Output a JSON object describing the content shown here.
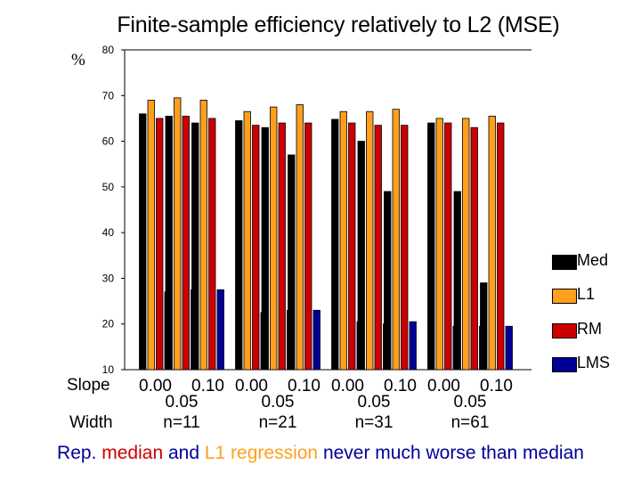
{
  "chart_data": {
    "type": "bar",
    "title": "Finite-sample efficiency relatively to L2   (MSE)",
    "ylabel": "%",
    "ylim": [
      10,
      80
    ],
    "yticks": [
      10,
      20,
      30,
      40,
      50,
      60,
      70,
      80
    ],
    "row_label_slope": "Slope",
    "row_label_width": "Width",
    "group_widths": [
      "n=11",
      "n=21",
      "n=31",
      "n=61"
    ],
    "slope_labels_top": [
      "0.00",
      "0.10",
      "0.00",
      "0.10",
      "0.00",
      "0.10",
      "0.00",
      "0.10"
    ],
    "slope_labels_mid": [
      "0.05",
      "0.05",
      "0.05",
      "0.05"
    ],
    "categories": [
      "n=11 slope 0.00",
      "n=11 slope 0.05",
      "n=11 slope 0.10",
      "n=21 slope 0.00",
      "n=21 slope 0.05",
      "n=21 slope 0.10",
      "n=31 slope 0.00",
      "n=31 slope 0.05",
      "n=31 slope 0.10",
      "n=61 slope 0.00",
      "n=61 slope 0.05",
      "n=61 slope 0.10"
    ],
    "series": [
      {
        "name": "Med",
        "color": "#000000",
        "values": [
          66,
          65.5,
          64,
          64.5,
          63,
          57,
          64.8,
          60,
          49,
          64,
          49,
          29
        ]
      },
      {
        "name": "L1",
        "color": "#ff9f1c",
        "values": [
          69,
          69.5,
          69,
          66.5,
          67.5,
          68,
          66.5,
          66.5,
          67,
          65,
          65,
          65.5
        ]
      },
      {
        "name": "RM",
        "color": "#cc0000",
        "values": [
          65,
          65.5,
          65,
          63.5,
          64,
          64,
          64,
          63.5,
          63.5,
          64,
          63,
          64
        ]
      },
      {
        "name": "LMS",
        "color": "#000099",
        "values": [
          27,
          27.5,
          27.5,
          22.5,
          23,
          23,
          20.5,
          20,
          20.5,
          19.5,
          19.5,
          19.5
        ]
      }
    ],
    "legend": [
      "Med",
      "L1",
      "RM",
      "LMS"
    ],
    "legend_position": "right"
  },
  "caption": {
    "part1": "Rep. ",
    "part2": "median",
    "part3": " and ",
    "part4": "L1 regression",
    "part5": " never much worse than median",
    "color_rm": "#cc0000",
    "color_l1": "#ff9f1c",
    "color_text": "#000099"
  }
}
